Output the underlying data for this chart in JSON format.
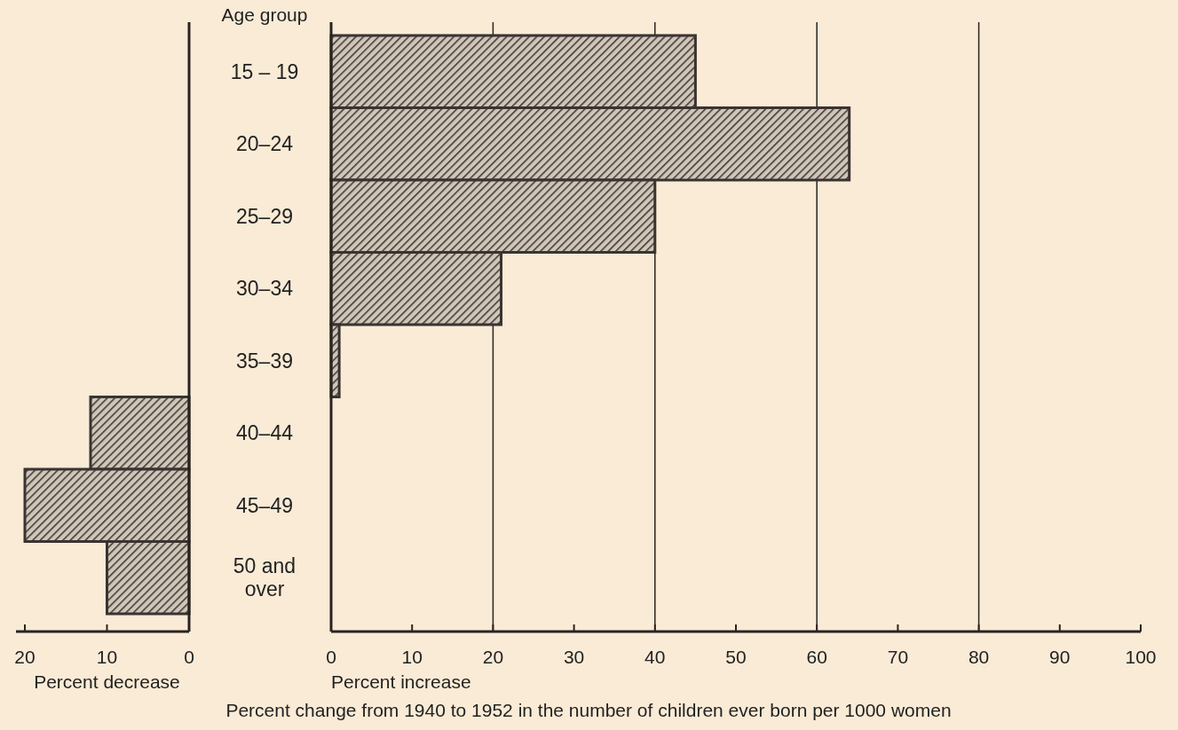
{
  "chart_data": [
    {
      "type": "bar",
      "orientation": "horizontal",
      "categories": [
        null,
        null,
        null,
        null,
        null,
        null,
        null,
        null
      ],
      "color": "#3a3330",
      "values": [
        null,
        null,
        null,
        null,
        null,
        12,
        20,
        10
      ],
      "xlim": [
        20,
        0
      ],
      "xticks": [
        20,
        10,
        0
      ],
      "xlabel": "Percent decrease"
    },
    {
      "type": "bar",
      "orientation": "horizontal",
      "categories": [
        "15 – 19",
        "20–24",
        "25–29",
        "30–34",
        "35–39",
        "40–44",
        "45–49",
        "50 and over"
      ],
      "color": "#3a3330",
      "values": [
        45,
        64,
        40,
        21,
        1,
        null,
        null,
        null
      ],
      "xlim": [
        0,
        100
      ],
      "xticks": [
        0,
        10,
        20,
        30,
        40,
        50,
        60,
        70,
        80,
        90,
        100
      ],
      "xlabel": "Percent increase",
      "ylabel": "Age group",
      "ref_lines": [
        {
          "axis": "x",
          "value": 20,
          "color": "#2a2420"
        },
        {
          "axis": "x",
          "value": 40,
          "color": "#2a2420"
        },
        {
          "axis": "x",
          "value": 60,
          "color": "#2a2420"
        },
        {
          "axis": "x",
          "value": 80,
          "color": "#2a2420"
        }
      ],
      "annotations": [
        "Percent change from 1940 to 1952 in the number of children ever born per 1000 women"
      ]
    }
  ]
}
